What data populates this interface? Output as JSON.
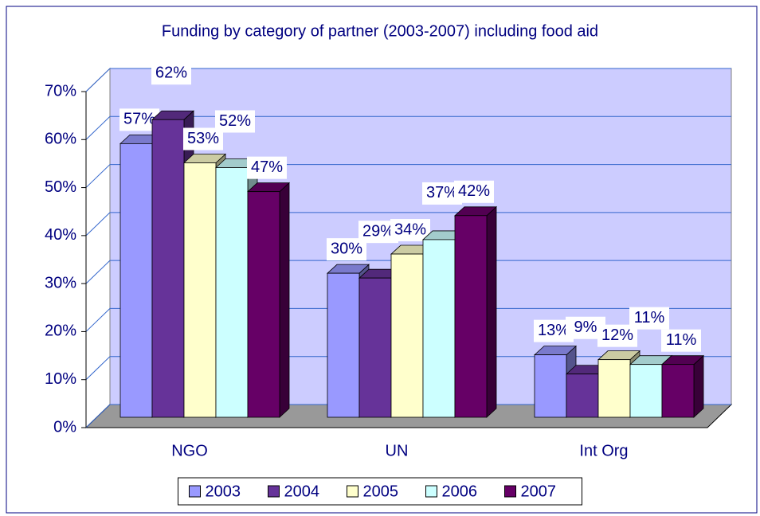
{
  "chart_data": {
    "type": "bar3d",
    "title": "Funding by category of partner (2003-2007) including food aid",
    "categories": [
      "NGO",
      "UN",
      "Int Org"
    ],
    "series": [
      {
        "name": "2003",
        "color": "#9999ff",
        "values": [
          57,
          30,
          13
        ],
        "value_labels": [
          "57%",
          "30%",
          "13%"
        ]
      },
      {
        "name": "2004",
        "color": "#663399",
        "values": [
          62,
          29,
          9
        ],
        "value_labels": [
          "62%",
          "29%",
          "9%"
        ]
      },
      {
        "name": "2005",
        "color": "#ffffcc",
        "values": [
          53,
          34,
          12
        ],
        "value_labels": [
          "53%",
          "34%",
          "12%"
        ]
      },
      {
        "name": "2006",
        "color": "#ccffff",
        "values": [
          52,
          37,
          11
        ],
        "value_labels": [
          "52%",
          "37%",
          "11%"
        ]
      },
      {
        "name": "2007",
        "color": "#660066",
        "values": [
          47,
          42,
          11
        ],
        "value_labels": [
          "47%",
          "42%",
          "11%"
        ]
      }
    ],
    "ylim": [
      0,
      70
    ],
    "yticks": [
      {
        "value": 0,
        "label": "0%"
      },
      {
        "value": 10,
        "label": "10%"
      },
      {
        "value": 20,
        "label": "20%"
      },
      {
        "value": 30,
        "label": "30%"
      },
      {
        "value": 40,
        "label": "40%"
      },
      {
        "value": 50,
        "label": "50%"
      },
      {
        "value": 60,
        "label": "60%"
      },
      {
        "value": 70,
        "label": "70%"
      }
    ],
    "grid": true,
    "legend": "bottom"
  }
}
